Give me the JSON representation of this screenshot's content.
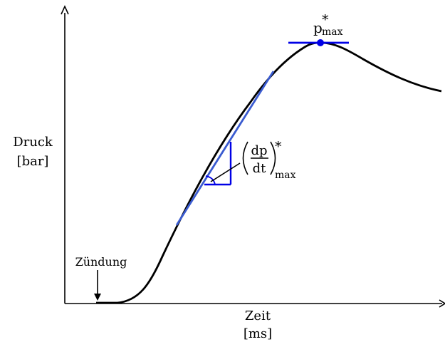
{
  "y_axis_label": {
    "line1": "Druck",
    "line2": "[bar]"
  },
  "x_axis_label": {
    "line1": "Zeit",
    "line2": "[ms]"
  },
  "ignition_label": "Zündung",
  "peak_label": {
    "base": "p",
    "sup": "*",
    "sub": "max"
  },
  "slope_label": {
    "numerator": "dp",
    "denominator": "dt",
    "sup": "*",
    "sub": "max"
  },
  "colors": {
    "curve": "#000000",
    "tangent": "#3a5bd0",
    "marker": "#0000e6"
  }
}
